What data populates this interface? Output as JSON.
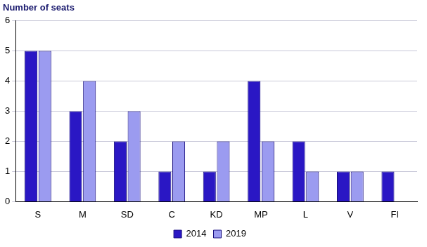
{
  "chart_data": {
    "type": "bar",
    "y_label": "Number of seats",
    "categories": [
      "S",
      "M",
      "SD",
      "C",
      "KD",
      "MP",
      "L",
      "V",
      "FI"
    ],
    "series": [
      {
        "name": "2014",
        "color": "#2a17c4",
        "values": [
          5,
          3,
          2,
          1,
          1,
          4,
          2,
          1,
          1
        ]
      },
      {
        "name": "2019",
        "color": "#9b9bf0",
        "values": [
          5,
          4,
          3,
          2,
          2,
          2,
          1,
          1,
          0
        ]
      }
    ],
    "ylim": [
      0,
      6
    ],
    "yticks": [
      0,
      1,
      2,
      3,
      4,
      5,
      6
    ],
    "grid": true,
    "legend": "bottom"
  }
}
